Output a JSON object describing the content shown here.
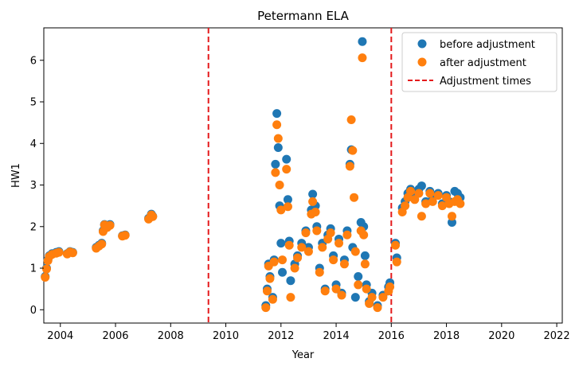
{
  "chart_data": {
    "type": "scatter",
    "title": "Petermann ELA",
    "xlabel": "Year",
    "ylabel": "HW1",
    "xlim": [
      2003.4,
      2022.2
    ],
    "ylim": [
      -0.32,
      6.78
    ],
    "xticks": [
      2004,
      2006,
      2008,
      2010,
      2012,
      2014,
      2016,
      2018,
      2020,
      2022
    ],
    "yticks": [
      0,
      1,
      2,
      3,
      4,
      5,
      6
    ],
    "legend_position": "top-right",
    "colors": {
      "before": "#1f77b4",
      "after": "#ff7f0e",
      "adjust": "#e41a1c"
    },
    "legend": [
      "before adjustment",
      "after adjustment",
      "Adjustment times"
    ],
    "adjustment_times": [
      2009.37,
      2016.0
    ],
    "before_adjustment": [
      [
        2003.45,
        0.8
      ],
      [
        2003.5,
        1.0
      ],
      [
        2003.55,
        1.2
      ],
      [
        2003.6,
        1.3
      ],
      [
        2003.7,
        1.35
      ],
      [
        2003.85,
        1.38
      ],
      [
        2003.95,
        1.4
      ],
      [
        2004.25,
        1.35
      ],
      [
        2004.35,
        1.4
      ],
      [
        2004.45,
        1.38
      ],
      [
        2005.3,
        1.5
      ],
      [
        2005.4,
        1.55
      ],
      [
        2005.5,
        1.6
      ],
      [
        2005.55,
        1.9
      ],
      [
        2005.6,
        2.05
      ],
      [
        2005.7,
        2.0
      ],
      [
        2005.8,
        2.05
      ],
      [
        2006.25,
        1.78
      ],
      [
        2006.35,
        1.8
      ],
      [
        2007.2,
        2.2
      ],
      [
        2007.3,
        2.3
      ],
      [
        2007.35,
        2.25
      ],
      [
        2011.45,
        0.1
      ],
      [
        2011.5,
        0.5
      ],
      [
        2011.55,
        1.1
      ],
      [
        2011.6,
        0.8
      ],
      [
        2011.7,
        0.3
      ],
      [
        2011.75,
        1.2
      ],
      [
        2011.8,
        3.5
      ],
      [
        2011.85,
        4.72
      ],
      [
        2011.9,
        3.9
      ],
      [
        2011.95,
        2.5
      ],
      [
        2012.0,
        1.6
      ],
      [
        2012.05,
        0.9
      ],
      [
        2012.2,
        3.62
      ],
      [
        2012.25,
        2.65
      ],
      [
        2012.3,
        1.65
      ],
      [
        2012.35,
        0.7
      ],
      [
        2012.5,
        1.1
      ],
      [
        2012.6,
        1.3
      ],
      [
        2012.75,
        1.6
      ],
      [
        2012.9,
        1.9
      ],
      [
        2013.0,
        1.5
      ],
      [
        2013.1,
        2.4
      ],
      [
        2013.15,
        2.78
      ],
      [
        2013.25,
        2.5
      ],
      [
        2013.3,
        2.0
      ],
      [
        2013.4,
        1.0
      ],
      [
        2013.5,
        1.6
      ],
      [
        2013.6,
        0.5
      ],
      [
        2013.7,
        1.8
      ],
      [
        2013.8,
        1.95
      ],
      [
        2013.9,
        1.3
      ],
      [
        2014.0,
        0.6
      ],
      [
        2014.1,
        1.7
      ],
      [
        2014.2,
        0.4
      ],
      [
        2014.3,
        1.2
      ],
      [
        2014.4,
        1.9
      ],
      [
        2014.5,
        3.5
      ],
      [
        2014.55,
        3.85
      ],
      [
        2014.6,
        1.5
      ],
      [
        2014.7,
        0.3
      ],
      [
        2014.8,
        0.8
      ],
      [
        2014.9,
        2.1
      ],
      [
        2014.95,
        6.45
      ],
      [
        2015.0,
        2.0
      ],
      [
        2015.05,
        1.3
      ],
      [
        2015.1,
        0.6
      ],
      [
        2015.2,
        0.2
      ],
      [
        2015.3,
        0.4
      ],
      [
        2015.5,
        0.1
      ],
      [
        2015.7,
        0.35
      ],
      [
        2015.9,
        0.55
      ],
      [
        2015.95,
        0.65
      ],
      [
        2016.15,
        1.6
      ],
      [
        2016.2,
        1.25
      ],
      [
        2016.4,
        2.45
      ],
      [
        2016.5,
        2.6
      ],
      [
        2016.6,
        2.8
      ],
      [
        2016.7,
        2.9
      ],
      [
        2016.85,
        2.75
      ],
      [
        2017.0,
        2.9
      ],
      [
        2017.1,
        2.98
      ],
      [
        2017.25,
        2.6
      ],
      [
        2017.4,
        2.85
      ],
      [
        2017.5,
        2.7
      ],
      [
        2017.7,
        2.8
      ],
      [
        2017.85,
        2.55
      ],
      [
        2018.0,
        2.75
      ],
      [
        2018.1,
        2.6
      ],
      [
        2018.2,
        2.1
      ],
      [
        2018.3,
        2.85
      ],
      [
        2018.4,
        2.8
      ],
      [
        2018.5,
        2.7
      ]
    ],
    "after_adjustment": [
      [
        2003.45,
        0.78
      ],
      [
        2003.5,
        0.98
      ],
      [
        2003.55,
        1.18
      ],
      [
        2003.6,
        1.28
      ],
      [
        2003.7,
        1.33
      ],
      [
        2003.85,
        1.36
      ],
      [
        2003.95,
        1.38
      ],
      [
        2004.25,
        1.34
      ],
      [
        2004.35,
        1.39
      ],
      [
        2004.45,
        1.37
      ],
      [
        2005.3,
        1.48
      ],
      [
        2005.4,
        1.53
      ],
      [
        2005.5,
        1.58
      ],
      [
        2005.55,
        1.88
      ],
      [
        2005.6,
        2.04
      ],
      [
        2005.7,
        1.98
      ],
      [
        2005.8,
        2.03
      ],
      [
        2006.25,
        1.77
      ],
      [
        2006.35,
        1.79
      ],
      [
        2007.2,
        2.18
      ],
      [
        2007.3,
        2.28
      ],
      [
        2007.35,
        2.24
      ],
      [
        2011.45,
        0.05
      ],
      [
        2011.5,
        0.45
      ],
      [
        2011.55,
        1.05
      ],
      [
        2011.6,
        0.75
      ],
      [
        2011.7,
        0.25
      ],
      [
        2011.75,
        1.15
      ],
      [
        2011.8,
        3.3
      ],
      [
        2011.85,
        4.45
      ],
      [
        2011.9,
        4.12
      ],
      [
        2011.95,
        3.0
      ],
      [
        2012.0,
        2.4
      ],
      [
        2012.05,
        1.2
      ],
      [
        2012.2,
        3.38
      ],
      [
        2012.25,
        2.48
      ],
      [
        2012.3,
        1.55
      ],
      [
        2012.35,
        0.3
      ],
      [
        2012.5,
        1.0
      ],
      [
        2012.6,
        1.25
      ],
      [
        2012.75,
        1.5
      ],
      [
        2012.9,
        1.85
      ],
      [
        2013.0,
        1.4
      ],
      [
        2013.1,
        2.3
      ],
      [
        2013.15,
        2.6
      ],
      [
        2013.25,
        2.35
      ],
      [
        2013.3,
        1.9
      ],
      [
        2013.4,
        0.9
      ],
      [
        2013.5,
        1.5
      ],
      [
        2013.6,
        0.45
      ],
      [
        2013.7,
        1.7
      ],
      [
        2013.8,
        1.85
      ],
      [
        2013.9,
        1.2
      ],
      [
        2014.0,
        0.5
      ],
      [
        2014.1,
        1.6
      ],
      [
        2014.2,
        0.35
      ],
      [
        2014.3,
        1.1
      ],
      [
        2014.4,
        1.8
      ],
      [
        2014.5,
        3.45
      ],
      [
        2014.55,
        4.57
      ],
      [
        2014.6,
        3.83
      ],
      [
        2014.65,
        2.7
      ],
      [
        2014.7,
        1.4
      ],
      [
        2014.8,
        0.6
      ],
      [
        2014.9,
        1.9
      ],
      [
        2014.95,
        6.06
      ],
      [
        2015.0,
        1.8
      ],
      [
        2015.05,
        1.1
      ],
      [
        2015.1,
        0.5
      ],
      [
        2015.2,
        0.15
      ],
      [
        2015.3,
        0.3
      ],
      [
        2015.5,
        0.05
      ],
      [
        2015.7,
        0.3
      ],
      [
        2015.9,
        0.45
      ],
      [
        2015.95,
        0.55
      ],
      [
        2016.15,
        1.55
      ],
      [
        2016.2,
        1.15
      ],
      [
        2016.4,
        2.35
      ],
      [
        2016.5,
        2.5
      ],
      [
        2016.6,
        2.7
      ],
      [
        2016.7,
        2.85
      ],
      [
        2016.85,
        2.65
      ],
      [
        2017.0,
        2.8
      ],
      [
        2017.1,
        2.25
      ],
      [
        2017.25,
        2.55
      ],
      [
        2017.4,
        2.8
      ],
      [
        2017.5,
        2.6
      ],
      [
        2017.7,
        2.75
      ],
      [
        2017.85,
        2.5
      ],
      [
        2018.0,
        2.7
      ],
      [
        2018.1,
        2.55
      ],
      [
        2018.2,
        2.25
      ],
      [
        2018.3,
        2.6
      ],
      [
        2018.4,
        2.65
      ],
      [
        2018.5,
        2.55
      ]
    ]
  }
}
